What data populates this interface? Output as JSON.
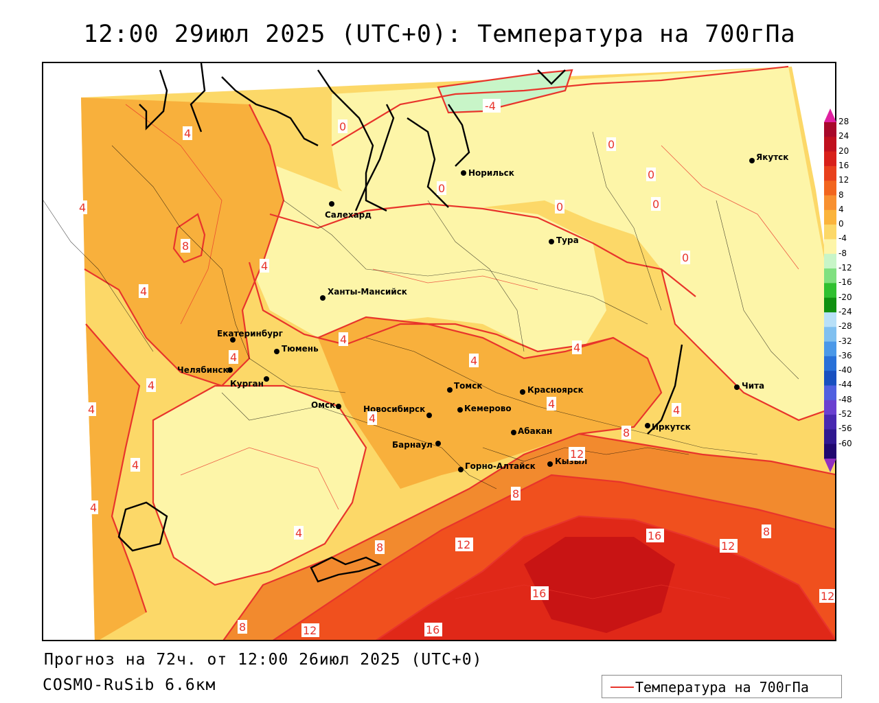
{
  "title": "12:00 29июл 2025 (UTC+0): Температура на 700гПа",
  "forecast_text": "Прогноз на 72ч. от 12:00 26июл 2025 (UTC+0)",
  "model_text": "COSMO-RuSib 6.6км",
  "legend": {
    "label": "Температура на 700гПа",
    "line_color": "#e8342b"
  },
  "colorbar": {
    "labels": [
      "28",
      "24",
      "20",
      "16",
      "12",
      "8",
      "4",
      "0",
      "-4",
      "-8",
      "-12",
      "-16",
      "-20",
      "-24",
      "-28",
      "-32",
      "-36",
      "-40",
      "-44",
      "-48",
      "-52",
      "-56",
      "-60"
    ],
    "colors": [
      "#a8082a",
      "#c0101e",
      "#d8201a",
      "#e8401c",
      "#f2651e",
      "#f89030",
      "#fbb43c",
      "#fcd868",
      "#fdf5a8",
      "#c8f5c8",
      "#80e080",
      "#30c030",
      "#109010",
      "#b8e0f8",
      "#80c0f0",
      "#4a98e8",
      "#2870d8",
      "#1850c0",
      "#5060e0",
      "#6a40d0",
      "#4828b0",
      "#301890",
      "#200870"
    ],
    "top_color": "#e020a0",
    "bottom_color": "#9030c0"
  },
  "cities": [
    {
      "name": "Норильск"
    },
    {
      "name": "Салехард"
    },
    {
      "name": "Тура"
    },
    {
      "name": "Якутск"
    },
    {
      "name": "Ханты-Мансийск"
    },
    {
      "name": "Екатеринбург"
    },
    {
      "name": "Тюмень"
    },
    {
      "name": "Челябинск"
    },
    {
      "name": "Курган"
    },
    {
      "name": "Омск"
    },
    {
      "name": "Новосибирск"
    },
    {
      "name": "Томск"
    },
    {
      "name": "Кемерово"
    },
    {
      "name": "Красноярск"
    },
    {
      "name": "Барнаул"
    },
    {
      "name": "Абакан"
    },
    {
      "name": "Горно-Алтайск"
    },
    {
      "name": "Кызыл"
    },
    {
      "name": "Иркутск"
    },
    {
      "name": "Чита"
    }
  ],
  "isolines": [
    "-4",
    "0",
    "0",
    "0",
    "0",
    "0",
    "0",
    "0",
    "4",
    "4",
    "4",
    "4",
    "4",
    "4",
    "4",
    "4",
    "4",
    "4",
    "4",
    "4",
    "4",
    "4",
    "4",
    "4",
    "8",
    "8",
    "8",
    "8",
    "8",
    "8",
    "12",
    "12",
    "12",
    "12",
    "12",
    "16",
    "16",
    "16"
  ],
  "zones": {
    "below_0": "#c8f5c8",
    "t0_4": "#fdf5a8",
    "t4_8": "#fcd868",
    "t8_12": "#f8b03c",
    "t12_16": "#f28a2e",
    "t16_20": "#f0501e",
    "t20_24": "#e02818",
    "t24_28": "#c81414"
  }
}
